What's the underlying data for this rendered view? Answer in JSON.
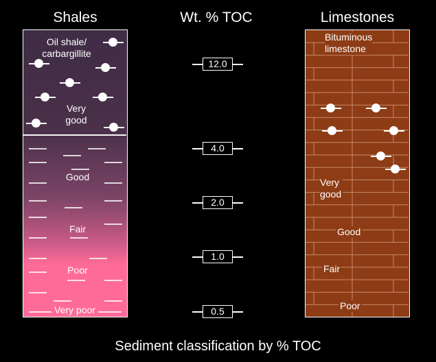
{
  "headers": {
    "shales": "Shales",
    "toc": "Wt. % TOC",
    "limestones": "Limestones"
  },
  "shales": {
    "labels": {
      "oil_shale": "Oil shale/\ncarbargillite",
      "very_good": "Very\ngood",
      "good": "Good",
      "fair": "Fair",
      "poor": "Poor",
      "very_poor": "Very poor"
    }
  },
  "limestones": {
    "labels": {
      "bituminous": "Bituminous\nlimestone",
      "very_good": "Very\ngood",
      "good": "Good",
      "fair": "Fair",
      "poor": "Poor"
    }
  },
  "toc_scale": [
    "12.0",
    "4.0",
    "2.0",
    "1.0",
    "0.5"
  ],
  "caption": "Sediment classification by % TOC",
  "colors": {
    "background": "#000000",
    "limestone": "#8d3c15",
    "shale_top": "#3f2c45",
    "shale_bottom": "#ff6b98"
  }
}
